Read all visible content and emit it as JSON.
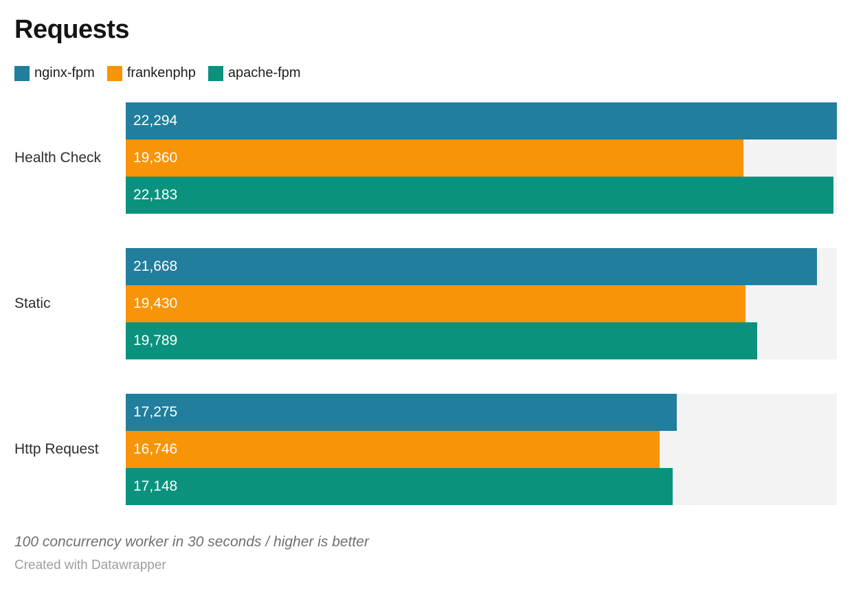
{
  "chart_data": {
    "type": "bar",
    "orientation": "horizontal",
    "title": "Requests",
    "categories": [
      "Health Check",
      "Static",
      "Http Request"
    ],
    "series": [
      {
        "name": "nginx-fpm",
        "color": "#217e9c",
        "values": [
          22294,
          21668,
          17275
        ],
        "labels": [
          "22,294",
          "21,668",
          "17,275"
        ]
      },
      {
        "name": "frankenphp",
        "color": "#f89407",
        "values": [
          19360,
          19430,
          16746
        ],
        "labels": [
          "19,360",
          "19,430",
          "16,746"
        ]
      },
      {
        "name": "apache-fpm",
        "color": "#0a927e",
        "values": [
          22183,
          19789,
          17148
        ],
        "labels": [
          "22,183",
          "19,789",
          "17,148"
        ]
      }
    ],
    "xlim": [
      0,
      22294
    ],
    "value_labels": "inside-start, white",
    "legend_position": "top",
    "grid": false,
    "track_color": "#f3f3f3",
    "background_color": "#ffffff",
    "notes": "100 concurrency worker in 30 seconds / higher is better",
    "attribution": "Created with Datawrapper"
  }
}
